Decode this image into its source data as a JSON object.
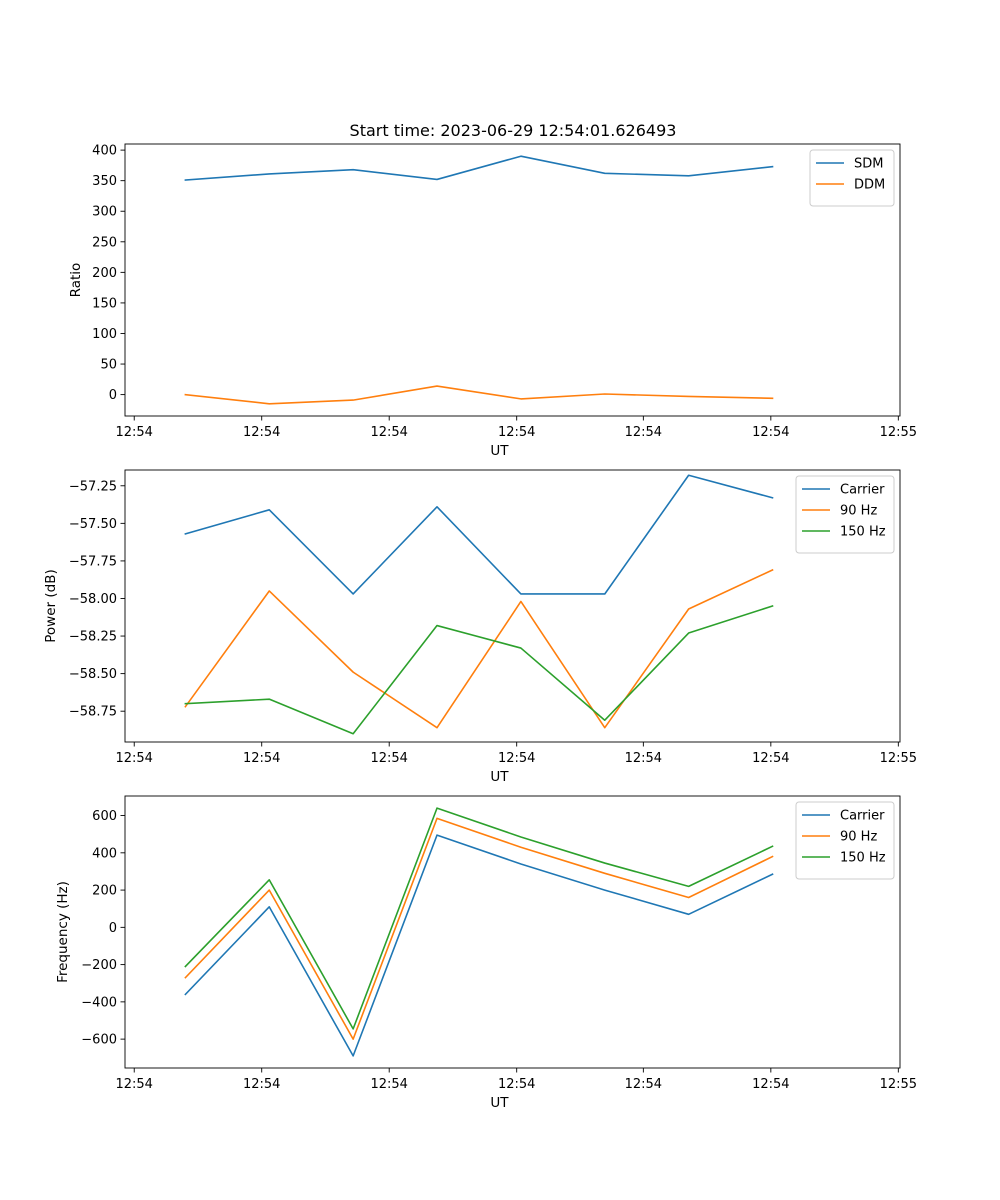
{
  "figure_title": "Start time: 2023-06-29 12:54:01.626493",
  "colors": {
    "blue": "#1f77b4",
    "orange": "#ff7f0e",
    "green": "#2ca02c"
  },
  "chart_data": [
    {
      "type": "line",
      "title": "Start time: 2023-06-29 12:54:01.626493",
      "xlabel": "UT",
      "ylabel": "Ratio",
      "xticks": [
        "12:54",
        "12:54",
        "12:54",
        "12:54",
        "12:54",
        "12:54",
        "12:55"
      ],
      "yticks": [
        0,
        50,
        100,
        150,
        200,
        250,
        300,
        350,
        400
      ],
      "ylim": [
        -35,
        410
      ],
      "x": [
        1,
        2,
        3,
        4,
        5,
        6,
        7,
        8
      ],
      "xlim": [
        0.28,
        9.52
      ],
      "xtick_positions": [
        0.39,
        1.91,
        3.43,
        4.95,
        6.46,
        7.98,
        9.5
      ],
      "legend_position": "top-right",
      "series": [
        {
          "name": "SDM",
          "color": "#1f77b4",
          "values": [
            351,
            361,
            368,
            352,
            390,
            362,
            358,
            373
          ]
        },
        {
          "name": "DDM",
          "color": "#ff7f0e",
          "values": [
            0,
            -15,
            -9,
            14,
            -7,
            1,
            -3,
            -6
          ]
        }
      ]
    },
    {
      "type": "line",
      "xlabel": "UT",
      "ylabel": "Power (dB)",
      "xticks": [
        "12:54",
        "12:54",
        "12:54",
        "12:54",
        "12:54",
        "12:54",
        "12:55"
      ],
      "yticks": [
        -58.75,
        -58.5,
        -58.25,
        -58.0,
        -57.75,
        -57.5,
        -57.25
      ],
      "ytick_labels": [
        "−58.75",
        "−58.50",
        "−58.25",
        "−58.00",
        "−57.75",
        "−57.50",
        "−57.25"
      ],
      "ylim": [
        -58.955,
        -57.145
      ],
      "x": [
        1,
        2,
        3,
        4,
        5,
        6,
        7,
        8
      ],
      "xlim": [
        0.28,
        9.52
      ],
      "xtick_positions": [
        0.39,
        1.91,
        3.43,
        4.95,
        6.46,
        7.98,
        9.5
      ],
      "legend_position": "top-right",
      "series": [
        {
          "name": "Carrier",
          "color": "#1f77b4",
          "values": [
            -57.57,
            -57.41,
            -57.97,
            -57.39,
            -57.97,
            -57.97,
            -57.18,
            -57.33
          ]
        },
        {
          "name": "90 Hz",
          "color": "#ff7f0e",
          "values": [
            -58.72,
            -57.95,
            -58.49,
            -58.86,
            -58.02,
            -58.86,
            -58.07,
            -57.81
          ]
        },
        {
          "name": "150 Hz",
          "color": "#2ca02c",
          "values": [
            -58.7,
            -58.67,
            -58.9,
            -58.18,
            -58.33,
            -58.81,
            -58.23,
            -58.05
          ]
        }
      ]
    },
    {
      "type": "line",
      "xlabel": "UT",
      "ylabel": "Frequency (Hz)",
      "xticks": [
        "12:54",
        "12:54",
        "12:54",
        "12:54",
        "12:54",
        "12:54",
        "12:55"
      ],
      "yticks": [
        -600,
        -400,
        -200,
        0,
        200,
        400,
        600
      ],
      "ytick_labels": [
        "−600",
        "−400",
        "−200",
        "0",
        "200",
        "400",
        "600"
      ],
      "ylim": [
        -755,
        705
      ],
      "x": [
        1,
        2,
        3,
        4,
        5,
        6,
        7,
        8
      ],
      "xlim": [
        0.28,
        9.52
      ],
      "xtick_positions": [
        0.39,
        1.91,
        3.43,
        4.95,
        6.46,
        7.98,
        9.5
      ],
      "legend_position": "top-right",
      "series": [
        {
          "name": "Carrier",
          "color": "#1f77b4",
          "values": [
            -360,
            110,
            -690,
            495,
            340,
            200,
            70,
            285
          ]
        },
        {
          "name": "90 Hz",
          "color": "#ff7f0e",
          "values": [
            -270,
            200,
            -600,
            585,
            430,
            290,
            160,
            380
          ]
        },
        {
          "name": "150 Hz",
          "color": "#2ca02c",
          "values": [
            -210,
            255,
            -545,
            640,
            485,
            345,
            220,
            435
          ]
        }
      ]
    }
  ]
}
